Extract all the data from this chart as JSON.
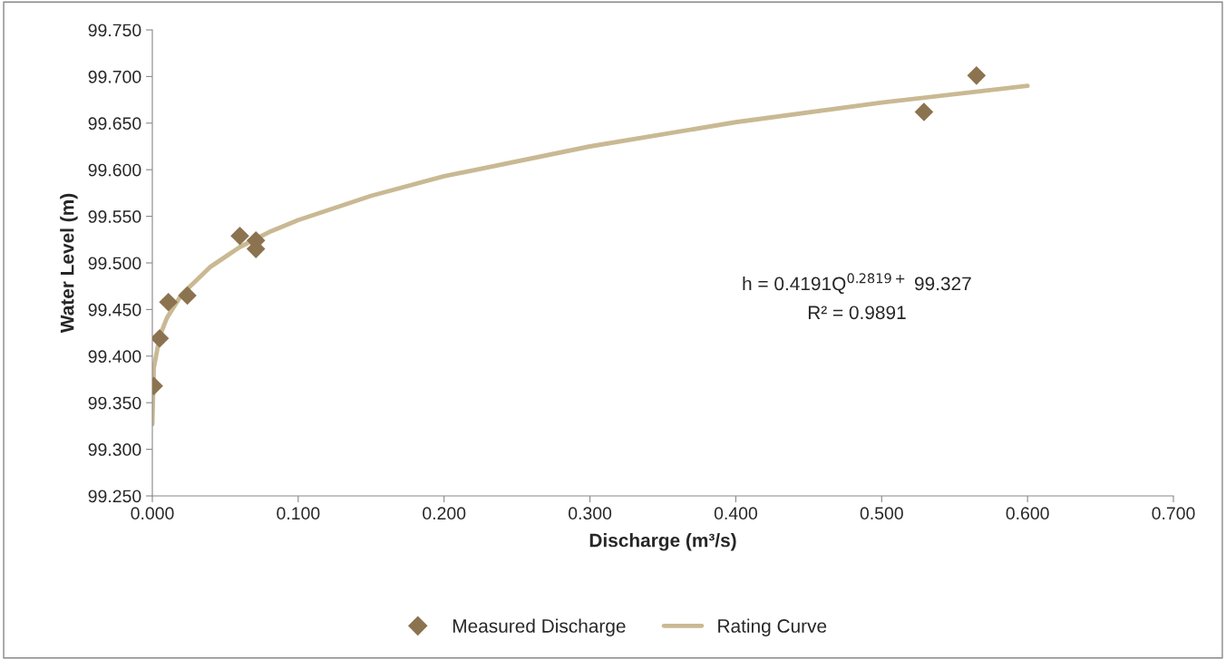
{
  "chart_data": {
    "type": "scatter",
    "xlabel": "Discharge (m³/s)",
    "ylabel": "Water Level (m)",
    "series": [
      {
        "name": "Measured Discharge",
        "marker": "diamond",
        "color": "#8c7350",
        "x": [
          0.001,
          0.005,
          0.011,
          0.024,
          0.06,
          0.071,
          0.071,
          0.529,
          0.565
        ],
        "values": [
          99.368,
          99.419,
          99.458,
          99.465,
          99.529,
          99.524,
          99.515,
          99.662,
          99.701
        ]
      },
      {
        "name": "Rating Curve",
        "type": "line",
        "marker": "none",
        "color": "#c9b993",
        "x": [
          0,
          0.001,
          0.005,
          0.01,
          0.02,
          0.04,
          0.06,
          0.08,
          0.1,
          0.15,
          0.2,
          0.3,
          0.4,
          0.5,
          0.6
        ],
        "values": [
          99.327,
          99.387,
          99.421,
          99.441,
          99.466,
          99.496,
          99.517,
          99.533,
          99.546,
          99.572,
          99.593,
          99.625,
          99.651,
          99.672,
          99.69
        ]
      }
    ],
    "annotations": [
      "h = 0.4191Q$^{0.2819+}$ 99.327",
      "R² = 0.9891"
    ],
    "xlim": [
      0,
      0.7
    ],
    "xticks": [
      {
        "value": 0,
        "label": "0.000"
      },
      {
        "value": 0.1,
        "label": "0.100"
      },
      {
        "value": 0.2,
        "label": "0.200"
      },
      {
        "value": 0.3,
        "label": "0.300"
      },
      {
        "value": 0.4,
        "label": "0.400"
      },
      {
        "value": 0.5,
        "label": "0.500"
      },
      {
        "value": 0.6,
        "label": "0.600"
      },
      {
        "value": 0.7,
        "label": "0.700"
      }
    ],
    "ylim": [
      99.25,
      99.75
    ],
    "yticks": [
      {
        "value": 99.25,
        "label": "99.250"
      },
      {
        "value": 99.3,
        "label": "99.300"
      },
      {
        "value": 99.35,
        "label": "99.350"
      },
      {
        "value": 99.4,
        "label": "99.400"
      },
      {
        "value": 99.45,
        "label": "99.450"
      },
      {
        "value": 99.5,
        "label": "99.500"
      },
      {
        "value": 99.55,
        "label": "99.550"
      },
      {
        "value": 99.6,
        "label": "99.600"
      },
      {
        "value": 99.65,
        "label": "99.650"
      },
      {
        "value": 99.7,
        "label": "99.700"
      },
      {
        "value": 99.75,
        "label": "99.750"
      }
    ],
    "grid": false,
    "legend": "bottom"
  }
}
